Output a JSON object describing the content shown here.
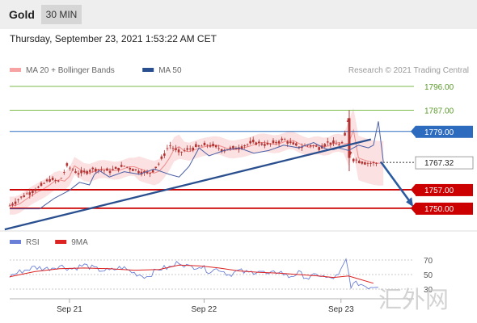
{
  "header": {
    "asset": "Gold",
    "timeframe": "30 MIN"
  },
  "timestamp": "Thursday, September 23, 2021 1:53:22 AM CET",
  "copyright": "Research © 2021 Trading Central",
  "watermark": "汇外网",
  "colors": {
    "candle": "#b33333",
    "bollinger": "#f7c9c9",
    "ma20": "#f08a8a",
    "ma50": "#4a5fa6",
    "trendline": "#2a4f8f",
    "support": "#cc0000",
    "resistance": "#7dbb4b",
    "pivot": "#2d6bbf",
    "current": "#333333",
    "rsi": "#6a7fd8",
    "rsi_ma": "#dd2222",
    "arrow": "#2a5aa0"
  },
  "chart_data": [
    {
      "type": "candlestick",
      "title": "Gold",
      "legend": [
        {
          "label": "MA 20 + Bollinger Bands",
          "color": "#f7a3a3"
        },
        {
          "label": "MA 50",
          "color": "#2a4f8f"
        }
      ],
      "x_ticks": [
        "Sep 21",
        "Sep 22",
        "Sep 23"
      ],
      "levels": [
        {
          "value": 1796.0,
          "label": "1796.00",
          "kind": "resistance"
        },
        {
          "value": 1787.0,
          "label": "1787.00",
          "kind": "resistance"
        },
        {
          "value": 1779.0,
          "label": "1779.00",
          "kind": "pivot"
        },
        {
          "value": 1767.32,
          "label": "1767.32",
          "kind": "current"
        },
        {
          "value": 1757.0,
          "label": "1757.00",
          "kind": "support"
        },
        {
          "value": 1750.0,
          "label": "1750.00",
          "kind": "support"
        }
      ],
      "trendline": {
        "from": {
          "t": -2,
          "price": 1742
        },
        "to": {
          "t": 145,
          "price": 1776
        }
      },
      "projection": {
        "from": {
          "t": 149,
          "price": 1767.5
        },
        "to": {
          "t": 162,
          "price": 1750.5
        }
      },
      "ohlc_close_path": [
        [
          0,
          1751
        ],
        [
          6,
          1755
        ],
        [
          12,
          1758
        ],
        [
          16,
          1761
        ],
        [
          20,
          1760
        ],
        [
          23,
          1766
        ],
        [
          28,
          1763
        ],
        [
          34,
          1765
        ],
        [
          40,
          1764
        ],
        [
          46,
          1766
        ],
        [
          52,
          1764
        ],
        [
          56,
          1763
        ],
        [
          60,
          1767
        ],
        [
          64,
          1774
        ],
        [
          68,
          1771
        ],
        [
          74,
          1773
        ],
        [
          80,
          1774
        ],
        [
          86,
          1772
        ],
        [
          92,
          1773
        ],
        [
          98,
          1775
        ],
        [
          104,
          1774
        ],
        [
          110,
          1776
        ],
        [
          114,
          1774
        ],
        [
          117,
          1773
        ],
        [
          120,
          1774
        ],
        [
          124,
          1773
        ],
        [
          128,
          1775
        ],
        [
          132,
          1774
        ],
        [
          134,
          1775
        ],
        [
          136,
          1784
        ],
        [
          137,
          1769
        ],
        [
          140,
          1768
        ],
        [
          144,
          1767
        ],
        [
          148,
          1767
        ]
      ],
      "ylim": [
        1741,
        1803
      ]
    },
    {
      "type": "line",
      "title": "RSI",
      "legend": [
        {
          "label": "RSI",
          "color": "#6a7fd8"
        },
        {
          "label": "9MA",
          "color": "#dd2222"
        }
      ],
      "y_ticks": [
        70,
        50,
        30
      ],
      "ylim": [
        20,
        82
      ],
      "series": [
        {
          "name": "RSI",
          "values": [
            [
              0,
              48
            ],
            [
              5,
              55
            ],
            [
              10,
              60
            ],
            [
              15,
              58
            ],
            [
              20,
              62
            ],
            [
              25,
              58
            ],
            [
              30,
              63
            ],
            [
              35,
              57
            ],
            [
              40,
              55
            ],
            [
              45,
              60
            ],
            [
              50,
              52
            ],
            [
              55,
              47
            ],
            [
              60,
              58
            ],
            [
              65,
              60
            ],
            [
              68,
              68
            ],
            [
              72,
              60
            ],
            [
              76,
              62
            ],
            [
              80,
              55
            ],
            [
              84,
              58
            ],
            [
              88,
              50
            ],
            [
              92,
              55
            ],
            [
              96,
              52
            ],
            [
              100,
              56
            ],
            [
              104,
              49
            ],
            [
              108,
              55
            ],
            [
              112,
              47
            ],
            [
              116,
              52
            ],
            [
              120,
              45
            ],
            [
              124,
              50
            ],
            [
              128,
              44
            ],
            [
              132,
              48
            ],
            [
              135,
              70
            ],
            [
              137,
              35
            ],
            [
              140,
              38
            ],
            [
              144,
              33
            ],
            [
              148,
              35
            ]
          ]
        },
        {
          "name": "9MA",
          "values": [
            [
              0,
              47
            ],
            [
              10,
              54
            ],
            [
              20,
              58
            ],
            [
              30,
              59
            ],
            [
              40,
              58
            ],
            [
              50,
              56
            ],
            [
              60,
              57
            ],
            [
              68,
              63
            ],
            [
              76,
              62
            ],
            [
              84,
              59
            ],
            [
              92,
              55
            ],
            [
              100,
              53
            ],
            [
              108,
              52
            ],
            [
              116,
              50
            ],
            [
              124,
              48
            ],
            [
              130,
              46
            ],
            [
              136,
              48
            ],
            [
              140,
              44
            ],
            [
              146,
              38
            ]
          ]
        }
      ]
    }
  ]
}
